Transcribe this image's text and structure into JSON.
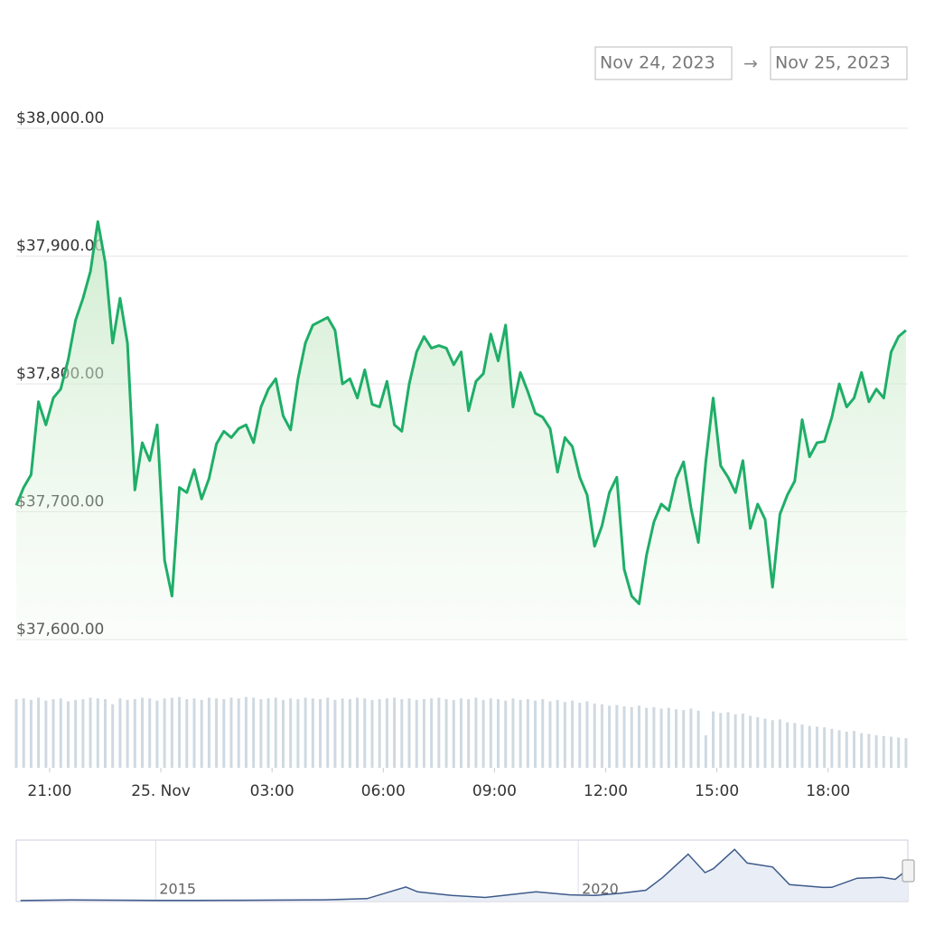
{
  "date_range": {
    "from": "Nov 24, 2023",
    "separator": "→",
    "to": "Nov 25, 2023"
  },
  "chart_data": [
    {
      "type": "area",
      "x": [
        20.1,
        20.3,
        20.5,
        20.7,
        20.9,
        21.1,
        21.3,
        21.5,
        21.7,
        21.9,
        22.1,
        22.3,
        22.5,
        22.7,
        22.9,
        23.1,
        23.3,
        23.5,
        23.7,
        23.9,
        24.1,
        24.3,
        24.5,
        24.7,
        24.9,
        25.1,
        25.3,
        25.5,
        25.7,
        25.9,
        26.1,
        26.3,
        26.5,
        26.7,
        26.9,
        27.1,
        27.3,
        27.5,
        27.7,
        27.9,
        28.1,
        28.3,
        28.5,
        28.7,
        28.9,
        29.1,
        29.3,
        29.5,
        29.7,
        29.9,
        30.1,
        30.3,
        30.5,
        30.7,
        30.9,
        31.1,
        31.3,
        31.5,
        31.7,
        31.9,
        32.1,
        32.3,
        32.5,
        32.7,
        32.9,
        33.1,
        33.3,
        33.5,
        33.7,
        33.9,
        34.1,
        34.3,
        34.5,
        34.7,
        34.9,
        35.1,
        35.3,
        35.5,
        35.7,
        35.9,
        36.1,
        36.3,
        36.5,
        36.7,
        36.9,
        37.1,
        37.3,
        37.5,
        37.7,
        37.9,
        38.1,
        38.3,
        38.5,
        38.7,
        38.9,
        39.1,
        39.3,
        39.5,
        39.7,
        39.9,
        40.1,
        40.3,
        40.5,
        40.7,
        40.9,
        41.1,
        41.3,
        41.5,
        41.7,
        41.9,
        42.1,
        42.3,
        42.5,
        42.7,
        42.9,
        43.1,
        43.3,
        43.5,
        43.7,
        43.9,
        44.1
      ],
      "series": [
        {
          "color": "#1fae68",
          "values": [
            37705,
            37719,
            37729,
            37786,
            37768,
            37789,
            37796,
            37819,
            37850,
            37867,
            37888,
            37927,
            37895,
            37832,
            37867,
            37832,
            37717,
            37754,
            37740,
            37768,
            37662,
            37634,
            37719,
            37715,
            37733,
            37710,
            37726,
            37753,
            37763,
            37758,
            37765,
            37768,
            37754,
            37782,
            37796,
            37804,
            37775,
            37764,
            37804,
            37832,
            37846,
            37849,
            37852,
            37842,
            37800,
            37804,
            37789,
            37811,
            37784,
            37782,
            37802,
            37768,
            37763,
            37800,
            37825,
            37837,
            37828,
            37830,
            37828,
            37815,
            37825,
            37779,
            37802,
            37808,
            37839,
            37818,
            37846,
            37782,
            37809,
            37794,
            37777,
            37774,
            37765,
            37731,
            37758,
            37751,
            37727,
            37713,
            37673,
            37689,
            37715,
            37727,
            37655,
            37634,
            37628,
            37666,
            37692,
            37706,
            37701,
            37726,
            37739,
            37703,
            37676,
            37739,
            37789,
            37736,
            37727,
            37715,
            37740,
            37687,
            37706,
            37694,
            37641,
            37698,
            37713,
            37724,
            37772,
            37743,
            37754,
            37755,
            37774,
            37800,
            37782,
            37789,
            37809,
            37786,
            37796,
            37789,
            37825,
            37837,
            37842
          ]
        },
        {
          "type": "bar",
          "axis": "y2",
          "color": "#cfd9e1",
          "values": [
            95,
            96,
            94,
            97,
            93,
            95,
            96,
            92,
            94,
            95,
            97,
            96,
            95,
            88,
            96,
            94,
            95,
            97,
            96,
            93,
            96,
            97,
            98,
            95,
            96,
            94,
            97,
            96,
            95,
            97,
            96,
            98,
            97,
            95,
            96,
            97,
            94,
            96,
            95,
            97,
            96,
            95,
            97,
            94,
            96,
            95,
            97,
            96,
            94,
            95,
            96,
            97,
            95,
            96,
            94,
            95,
            96,
            97,
            95,
            94,
            96,
            95,
            97,
            94,
            96,
            95,
            93,
            96,
            94,
            95,
            93,
            95,
            92,
            94,
            91,
            93,
            90,
            92,
            89,
            88,
            86,
            87,
            85,
            84,
            86,
            83,
            84,
            82,
            83,
            81,
            80,
            82,
            79,
            45,
            78,
            76,
            77,
            74,
            75,
            72,
            70,
            68,
            66,
            67,
            63,
            62,
            60,
            58,
            57,
            56,
            54,
            52,
            50,
            51,
            48,
            47,
            45,
            44,
            43,
            42,
            41
          ]
        }
      ],
      "xlim": [
        20.1,
        44.15
      ],
      "xticks": [
        {
          "value": 21,
          "label": "21:00"
        },
        {
          "value": 24,
          "label": "25. Nov"
        },
        {
          "value": 27,
          "label": "03:00"
        },
        {
          "value": 30,
          "label": "06:00"
        },
        {
          "value": 33,
          "label": "09:00"
        },
        {
          "value": 36,
          "label": "12:00"
        },
        {
          "value": 39,
          "label": "15:00"
        },
        {
          "value": 42,
          "label": "18:00"
        }
      ],
      "ylim": [
        37600,
        38000
      ],
      "yticks": [
        {
          "value": 37600,
          "label": "$37,600.00"
        },
        {
          "value": 37700,
          "label": "$37,700.00"
        },
        {
          "value": 37800,
          "label": "$37,800.00"
        },
        {
          "value": 37900,
          "label": "$37,900.00"
        },
        {
          "value": 38000,
          "label": "$38,000.00"
        }
      ],
      "y2lim": [
        0,
        100
      ],
      "grid": true
    },
    {
      "type": "line",
      "x": [
        2013.4,
        2014.0,
        2014.5,
        2015.0,
        2015.5,
        2016.0,
        2016.5,
        2017.0,
        2017.5,
        2017.96,
        2018.1,
        2018.5,
        2018.9,
        2019.5,
        2019.9,
        2020.2,
        2020.5,
        2020.8,
        2021.0,
        2021.3,
        2021.5,
        2021.6,
        2021.85,
        2022.0,
        2022.3,
        2022.5,
        2022.9,
        2023.0,
        2023.3,
        2023.6,
        2023.75,
        2023.85,
        2023.9
      ],
      "series": [
        {
          "color": "#3d5a8a",
          "values": [
            100,
            800,
            600,
            300,
            250,
            430,
            650,
            1000,
            2500,
            17000,
            11000,
            6500,
            4000,
            11000,
            7200,
            6500,
            9200,
            13000,
            29000,
            58000,
            35000,
            40000,
            64000,
            47000,
            42000,
            20000,
            16500,
            16600,
            28000,
            29000,
            26500,
            35000,
            37000
          ]
        }
      ],
      "xlim": [
        2013.35,
        2023.9
      ],
      "xticks": [
        2015,
        2020
      ],
      "ylim": [
        0,
        70000
      ]
    }
  ]
}
